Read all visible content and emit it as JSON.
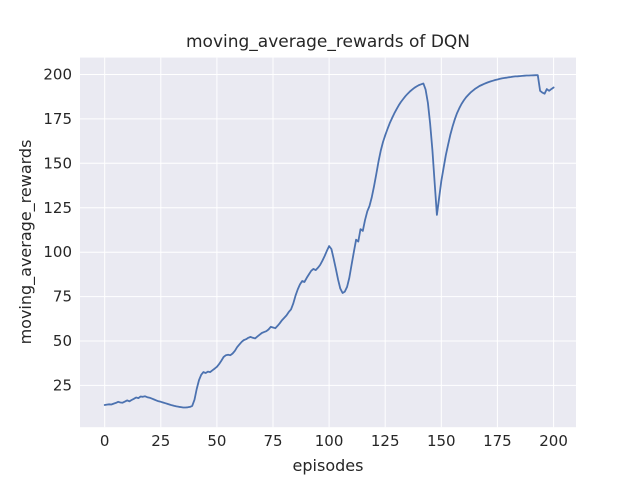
{
  "chart_data": {
    "type": "line",
    "title": "moving_average_rewards of DQN",
    "xlabel": "episodes",
    "ylabel": "moving_average_rewards",
    "x_ticks": [
      0,
      25,
      50,
      75,
      100,
      125,
      150,
      175,
      200
    ],
    "y_ticks": [
      25,
      50,
      75,
      100,
      125,
      150,
      175,
      200
    ],
    "xlim": [
      -11,
      210
    ],
    "ylim": [
      1.5,
      209.5
    ],
    "grid": true,
    "legend": "none",
    "colors": {
      "line": "#4C72B0",
      "axes_bg": "#EAEAF2",
      "grid": "#FFFFFF",
      "text": "#262626",
      "figure_bg": "#FFFFFF"
    },
    "series": [
      {
        "name": "moving_average_rewards",
        "x_start": 0,
        "x_step": 1,
        "values": [
          14.0,
          14.2,
          14.4,
          14.3,
          14.8,
          15.2,
          15.8,
          15.4,
          15.3,
          15.9,
          16.6,
          16.1,
          16.8,
          17.5,
          18.2,
          17.9,
          18.8,
          18.6,
          18.9,
          18.4,
          18.1,
          17.6,
          17.1,
          16.6,
          16.1,
          15.8,
          15.4,
          15.0,
          14.6,
          14.2,
          13.8,
          13.5,
          13.2,
          13.0,
          12.8,
          12.6,
          12.6,
          12.7,
          12.9,
          13.5,
          17.0,
          23.0,
          28.0,
          31.0,
          32.5,
          32.0,
          32.8,
          32.5,
          33.5,
          34.5,
          35.5,
          37.0,
          39.0,
          41.0,
          42.0,
          42.3,
          42.0,
          43.0,
          44.5,
          46.5,
          48.0,
          49.5,
          50.5,
          51.0,
          51.8,
          52.3,
          51.8,
          51.5,
          52.5,
          53.5,
          54.5,
          55.0,
          55.5,
          56.5,
          58.0,
          57.6,
          57.2,
          58.5,
          60.0,
          61.7,
          63.0,
          64.4,
          66.3,
          67.8,
          71.0,
          75.5,
          79.0,
          81.8,
          83.8,
          83.2,
          85.5,
          87.5,
          89.5,
          90.6,
          89.9,
          91.2,
          92.8,
          95.2,
          97.8,
          100.8,
          103.4,
          101.8,
          96.5,
          90.5,
          84.5,
          79.5,
          77.0,
          77.8,
          80.5,
          85.5,
          93.0,
          100.0,
          107.0,
          106.0,
          113.0,
          112.0,
          118.0,
          123.0,
          126.0,
          131.0,
          137.0,
          144.0,
          151.0,
          157.0,
          162.0,
          165.8,
          169.3,
          172.5,
          175.4,
          178.0,
          180.4,
          182.6,
          184.5,
          186.2,
          187.8,
          189.2,
          190.4,
          191.5,
          192.5,
          193.3,
          194.0,
          194.5,
          194.9,
          191.5,
          184.0,
          172.5,
          157.5,
          139.5,
          121.0,
          130.5,
          140.0,
          147.5,
          154.5,
          160.5,
          166.0,
          170.8,
          174.8,
          178.2,
          181.0,
          183.4,
          185.4,
          187.1,
          188.5,
          189.8,
          190.9,
          191.9,
          192.7,
          193.5,
          194.1,
          194.7,
          195.2,
          195.7,
          196.1,
          196.5,
          196.9,
          197.2,
          197.5,
          197.8,
          198.0,
          198.2,
          198.4,
          198.6,
          198.8,
          198.9,
          199.0,
          199.1,
          199.2,
          199.3,
          199.4,
          199.45,
          199.5,
          199.55,
          199.6,
          199.6,
          190.8,
          189.8,
          189.2,
          191.8,
          190.8,
          191.8,
          192.7
        ]
      }
    ]
  }
}
